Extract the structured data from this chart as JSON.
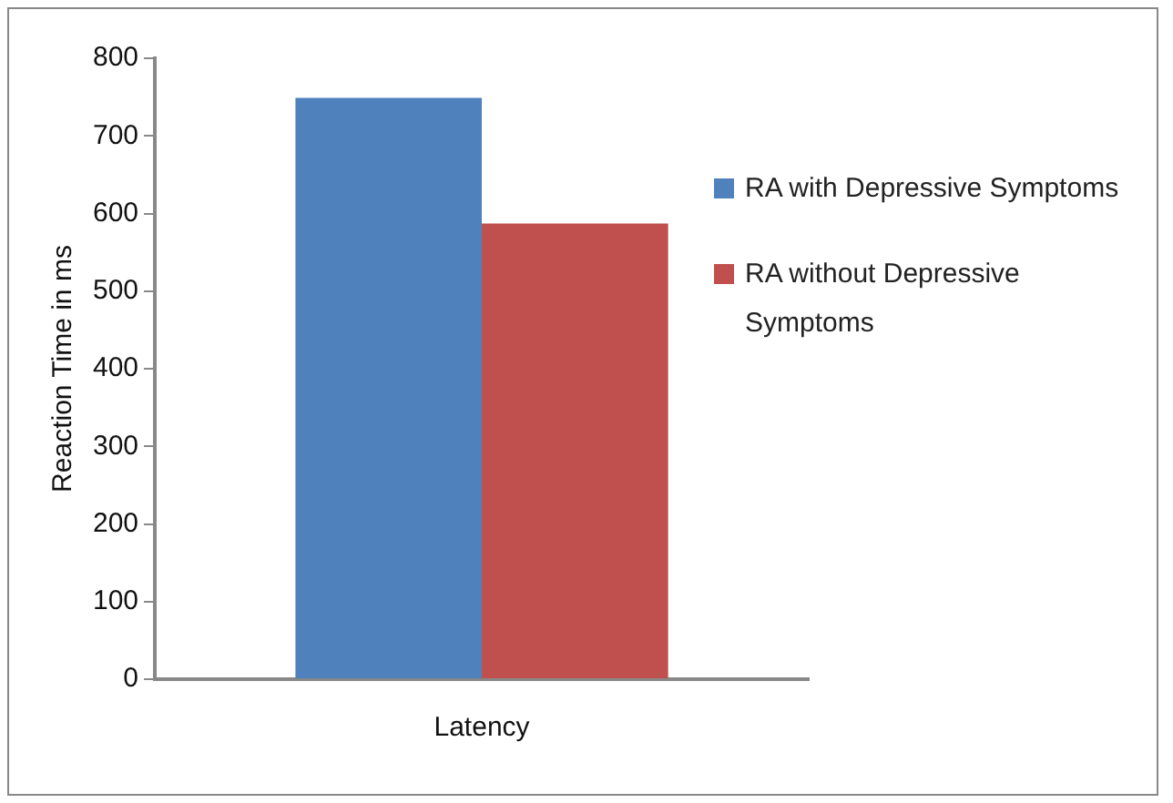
{
  "chart_data": {
    "type": "bar",
    "ylabel": "Reaction Time in ms",
    "categories": [
      "Latency"
    ],
    "series": [
      {
        "name": "RA with Depressive Symptoms",
        "color": "#4f81bd",
        "values": [
          749
        ]
      },
      {
        "name": "RA without Depressive Symptoms",
        "color": "#c0504d",
        "values": [
          587
        ]
      }
    ],
    "ylim": [
      0,
      800
    ],
    "yticks": [
      0,
      100,
      200,
      300,
      400,
      500,
      600,
      700,
      800
    ],
    "grid": false,
    "legend": "right"
  }
}
